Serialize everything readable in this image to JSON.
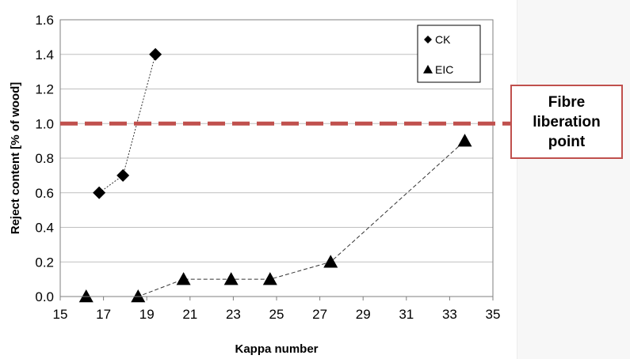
{
  "chart_data": {
    "type": "scatter",
    "xlabel": "Kappa number",
    "ylabel": "Reject content [% of wood]",
    "xlim": [
      15,
      35
    ],
    "ylim": [
      0,
      1.6
    ],
    "x_ticks": [
      "15",
      "17",
      "19",
      "21",
      "23",
      "25",
      "27",
      "29",
      "31",
      "33",
      "35"
    ],
    "y_ticks": [
      "0.0",
      "0.2",
      "0.4",
      "0.6",
      "0.8",
      "1.0",
      "1.2",
      "1.4",
      "1.6"
    ],
    "grid": "horizontal",
    "legend_position": "top-right",
    "series": [
      {
        "name": "CK",
        "marker": "diamond",
        "line": "dotted",
        "color": "#000000",
        "points": [
          [
            16.8,
            0.6
          ],
          [
            17.9,
            0.7
          ],
          [
            19.4,
            1.4
          ]
        ]
      },
      {
        "name": "EIC",
        "marker": "triangle",
        "line": "dashed",
        "color": "#000000",
        "points": [
          [
            16.2,
            0.0
          ],
          [
            18.6,
            0.0
          ],
          [
            20.7,
            0.1
          ],
          [
            22.9,
            0.1
          ],
          [
            24.7,
            0.1
          ],
          [
            27.5,
            0.2
          ],
          [
            33.7,
            0.9
          ]
        ]
      }
    ],
    "threshold": {
      "y": 1.0,
      "color": "#c0504d",
      "style": "dashed"
    }
  },
  "callout": {
    "lines": [
      "Fibre",
      "liberation",
      "point"
    ],
    "border_color": "#c0504d"
  }
}
